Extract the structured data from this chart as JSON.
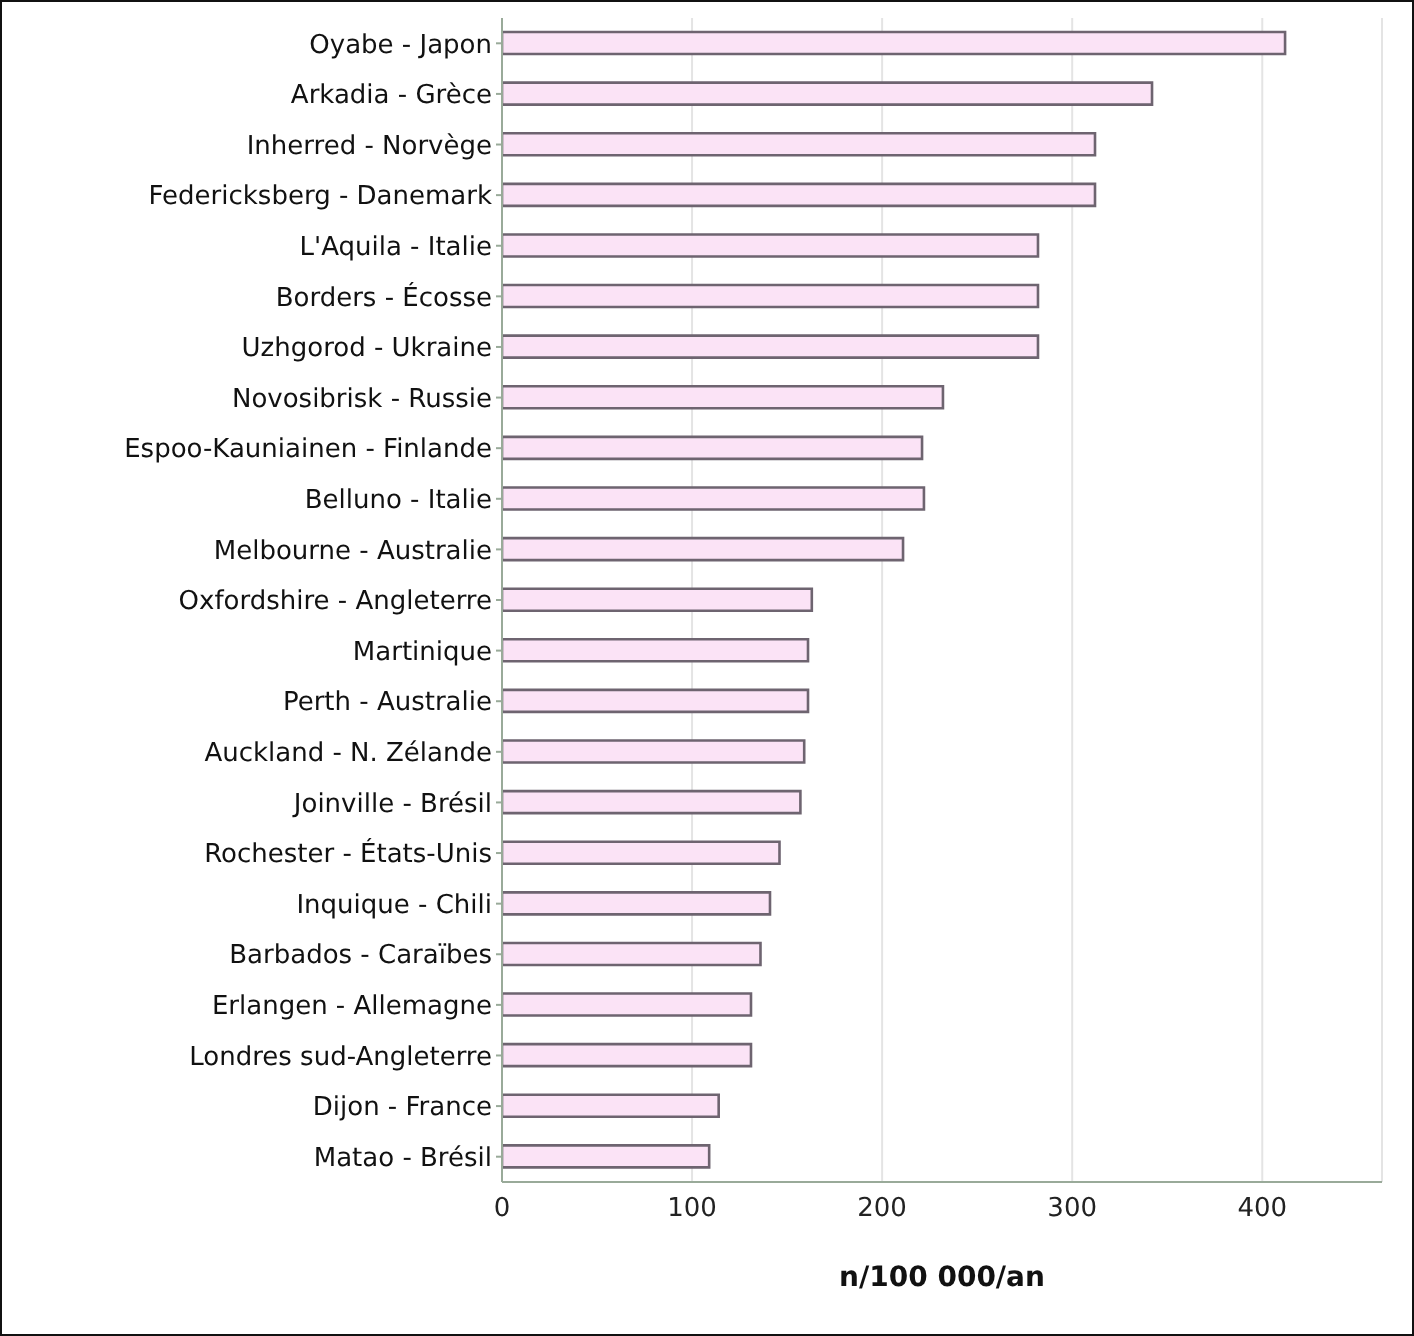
{
  "chart_data": {
    "type": "bar",
    "orientation": "horizontal",
    "xlabel": "n/100 000/an",
    "categories": [
      "Oyabe - Japon",
      "Arkadia - Grèce",
      "Inherred - Norvège",
      "Federicksberg - Danemark",
      "L'Aquila - Italie",
      "Borders - Écosse",
      "Uzhgorod - Ukraine",
      "Novosibrisk - Russie",
      "Espoo-Kauniainen - Finlande",
      "Belluno - Italie",
      "Melbourne - Australie",
      "Oxfordshire - Angleterre",
      "Martinique",
      "Perth - Australie",
      "Auckland - N. Zélande",
      "Joinville - Brésil",
      "Rochester - États-Unis",
      "Inquique - Chili",
      "Barbados - Caraïbes",
      "Erlangen - Allemagne",
      "Londres sud-Angleterre",
      "Dijon - France",
      "Matao - Brésil"
    ],
    "values": [
      412,
      342,
      312,
      312,
      282,
      282,
      282,
      232,
      221,
      222,
      211,
      163,
      161,
      161,
      159,
      157,
      146,
      141,
      136,
      131,
      131,
      114,
      109
    ],
    "color": "#fbe3f6",
    "xlim": [
      0,
      463
    ],
    "xticks": [
      0,
      100,
      200,
      300,
      400
    ],
    "grid": "x"
  }
}
